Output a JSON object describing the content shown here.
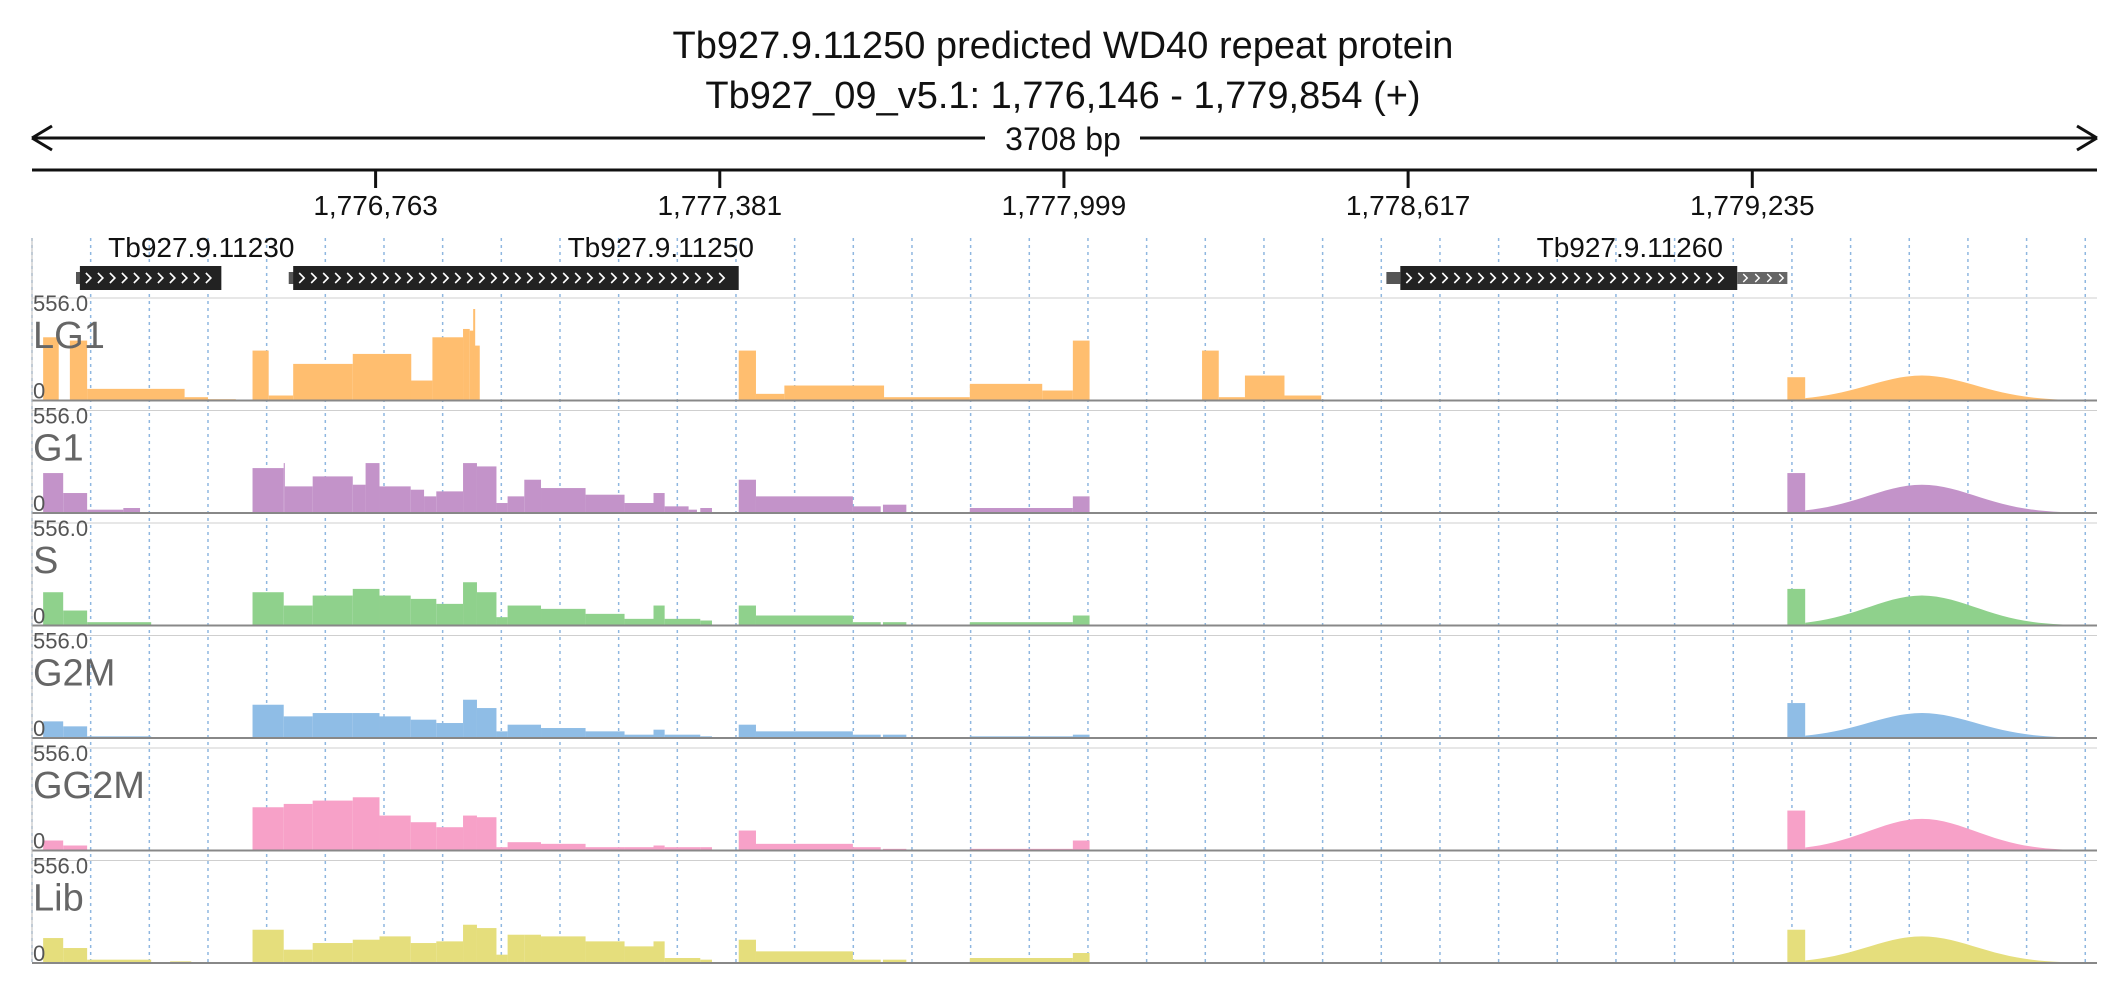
{
  "title": {
    "line1": "Tb927.9.11250  predicted WD40 repeat protein",
    "line2": "Tb927_09_v5.1: 1,776,146 - 1,779,854 (+)"
  },
  "span_label": "3708 bp",
  "chart_data": {
    "type": "area",
    "x_range": [
      1776146,
      1779854
    ],
    "x_ticks": [
      1776763,
      1777381,
      1777999,
      1778617,
      1779235
    ],
    "x_tick_labels": [
      "1,776,763",
      "1,777,381",
      "1,777,999",
      "1,778,617",
      "1,779,235"
    ],
    "ylim": [
      0,
      556.0
    ],
    "y_max_label": "556.0",
    "y_min_label": "0",
    "grid": "vertical dotted",
    "genes": [
      {
        "name": "Tb927.9.11230",
        "label_center": 1776450,
        "utr5": [
          1776225,
          1776232
        ],
        "cds": [
          1776232,
          1776486
        ]
      },
      {
        "name": "Tb927.9.11250",
        "label_center": 1777275,
        "utr5": [
          1776607,
          1776615
        ],
        "cds": [
          1776615,
          1777415
        ]
      },
      {
        "name": "Tb927.9.11260",
        "label_center": 1779015,
        "utr5": [
          1778578,
          1778603
        ],
        "cds": [
          1778603,
          1779208
        ],
        "utr3": [
          1779208,
          1779298
        ]
      }
    ],
    "series": [
      {
        "name": "LG1",
        "color": "#ffbe6f",
        "blocks": [
          [
            1776166,
            1776194,
            380
          ],
          [
            1776214,
            1776245,
            360
          ],
          [
            1776245,
            1776420,
            70
          ],
          [
            1776420,
            1776462,
            20
          ],
          [
            1776462,
            1776512,
            8
          ],
          [
            1776512,
            1776535,
            5
          ],
          [
            1776516,
            1776542,
            4
          ],
          [
            1776542,
            1776571,
            300
          ],
          [
            1776571,
            1776615,
            30
          ],
          [
            1776615,
            1776722,
            220
          ],
          [
            1776722,
            1776827,
            280
          ],
          [
            1776827,
            1776825,
            0
          ],
          [
            1776825,
            1776865,
            120
          ],
          [
            1776865,
            1776920,
            380
          ],
          [
            1776920,
            1776932,
            430
          ],
          [
            1776932,
            1776940,
            420
          ],
          [
            1776940,
            1776950,
            330
          ],
          [
            1777415,
            1777446,
            300
          ],
          [
            1777446,
            1777497,
            40
          ],
          [
            1777497,
            1777676,
            90
          ],
          [
            1777676,
            1777830,
            20
          ],
          [
            1777830,
            1777960,
            100
          ],
          [
            1777960,
            1778015,
            60
          ],
          [
            1778015,
            1778045,
            360
          ],
          [
            1778247,
            1778277,
            300
          ],
          [
            1778277,
            1778324,
            20
          ],
          [
            1778324,
            1778395,
            150
          ],
          [
            1778395,
            1778461,
            30
          ]
        ],
        "peaks": [
          [
            1776940,
            550
          ]
        ]
      },
      {
        "name": "G1",
        "color": "#c393c9",
        "blocks": [
          [
            1776166,
            1776202,
            240
          ],
          [
            1776202,
            1776245,
            120
          ],
          [
            1776245,
            1776310,
            20
          ],
          [
            1776310,
            1776340,
            30
          ],
          [
            1776394,
            1776432,
            5
          ],
          [
            1776542,
            1776598,
            270
          ],
          [
            1776598,
            1776600,
            300
          ],
          [
            1776600,
            1776650,
            160
          ],
          [
            1776650,
            1776722,
            220
          ],
          [
            1776722,
            1776745,
            170
          ],
          [
            1776745,
            1776770,
            300
          ],
          [
            1776770,
            1776826,
            160
          ],
          [
            1776826,
            1776850,
            140
          ],
          [
            1776850,
            1776872,
            100
          ],
          [
            1776872,
            1776920,
            130
          ],
          [
            1776920,
            1776945,
            300
          ],
          [
            1776945,
            1776980,
            280
          ],
          [
            1776980,
            1777000,
            60
          ],
          [
            1777000,
            1777030,
            100
          ],
          [
            1777030,
            1777060,
            200
          ],
          [
            1777060,
            1777140,
            150
          ],
          [
            1777140,
            1777210,
            110
          ],
          [
            1777210,
            1777262,
            60
          ],
          [
            1777262,
            1777282,
            120
          ],
          [
            1777282,
            1777325,
            40
          ],
          [
            1777325,
            1777340,
            20
          ],
          [
            1777346,
            1777367,
            30
          ],
          [
            1777415,
            1777446,
            200
          ],
          [
            1777446,
            1777620,
            100
          ],
          [
            1777620,
            1777670,
            40
          ],
          [
            1777674,
            1777716,
            50
          ],
          [
            1777830,
            1778015,
            30
          ],
          [
            1778015,
            1778045,
            100
          ]
        ]
      },
      {
        "name": "S",
        "color": "#8fd18c",
        "blocks": [
          [
            1776166,
            1776202,
            200
          ],
          [
            1776202,
            1776245,
            90
          ],
          [
            1776245,
            1776360,
            20
          ],
          [
            1776394,
            1776432,
            5
          ],
          [
            1776542,
            1776598,
            200
          ],
          [
            1776598,
            1776650,
            120
          ],
          [
            1776650,
            1776722,
            180
          ],
          [
            1776722,
            1776770,
            220
          ],
          [
            1776770,
            1776826,
            180
          ],
          [
            1776826,
            1776872,
            160
          ],
          [
            1776872,
            1776920,
            130
          ],
          [
            1776920,
            1776945,
            260
          ],
          [
            1776945,
            1776980,
            200
          ],
          [
            1776980,
            1777000,
            50
          ],
          [
            1777000,
            1777060,
            120
          ],
          [
            1777060,
            1777140,
            100
          ],
          [
            1777140,
            1777210,
            70
          ],
          [
            1777210,
            1777262,
            40
          ],
          [
            1777262,
            1777282,
            120
          ],
          [
            1777282,
            1777346,
            40
          ],
          [
            1777346,
            1777367,
            30
          ],
          [
            1777415,
            1777446,
            120
          ],
          [
            1777446,
            1777620,
            60
          ],
          [
            1777620,
            1777670,
            20
          ],
          [
            1777674,
            1777716,
            20
          ],
          [
            1777830,
            1778015,
            20
          ],
          [
            1778015,
            1778045,
            60
          ]
        ]
      },
      {
        "name": "G2M",
        "color": "#8fbde6",
        "blocks": [
          [
            1776166,
            1776202,
            100
          ],
          [
            1776202,
            1776245,
            70
          ],
          [
            1776245,
            1776360,
            10
          ],
          [
            1776394,
            1776432,
            5
          ],
          [
            1776542,
            1776598,
            200
          ],
          [
            1776598,
            1776650,
            130
          ],
          [
            1776650,
            1776722,
            150
          ],
          [
            1776722,
            1776770,
            150
          ],
          [
            1776770,
            1776826,
            130
          ],
          [
            1776826,
            1776872,
            110
          ],
          [
            1776872,
            1776920,
            90
          ],
          [
            1776920,
            1776945,
            230
          ],
          [
            1776945,
            1776980,
            180
          ],
          [
            1776980,
            1777000,
            40
          ],
          [
            1777000,
            1777060,
            80
          ],
          [
            1777060,
            1777140,
            60
          ],
          [
            1777140,
            1777210,
            40
          ],
          [
            1777210,
            1777262,
            20
          ],
          [
            1777262,
            1777282,
            50
          ],
          [
            1777282,
            1777346,
            20
          ],
          [
            1777346,
            1777367,
            10
          ],
          [
            1777415,
            1777446,
            80
          ],
          [
            1777446,
            1777620,
            40
          ],
          [
            1777620,
            1777670,
            20
          ],
          [
            1777674,
            1777716,
            20
          ],
          [
            1777830,
            1778015,
            10
          ],
          [
            1778015,
            1778045,
            20
          ]
        ]
      },
      {
        "name": "GG2M",
        "color": "#f7a1c8",
        "blocks": [
          [
            1776166,
            1776202,
            60
          ],
          [
            1776202,
            1776245,
            30
          ],
          [
            1776542,
            1776598,
            260
          ],
          [
            1776598,
            1776650,
            280
          ],
          [
            1776650,
            1776722,
            300
          ],
          [
            1776722,
            1776770,
            320
          ],
          [
            1776770,
            1776826,
            210
          ],
          [
            1776826,
            1776872,
            170
          ],
          [
            1776872,
            1776920,
            140
          ],
          [
            1776920,
            1776945,
            210
          ],
          [
            1776945,
            1776980,
            200
          ],
          [
            1776980,
            1777000,
            20
          ],
          [
            1777000,
            1777060,
            50
          ],
          [
            1777060,
            1777140,
            40
          ],
          [
            1777140,
            1777210,
            20
          ],
          [
            1777210,
            1777262,
            20
          ],
          [
            1777262,
            1777282,
            30
          ],
          [
            1777282,
            1777346,
            20
          ],
          [
            1777346,
            1777367,
            20
          ],
          [
            1777415,
            1777446,
            120
          ],
          [
            1777446,
            1777620,
            40
          ],
          [
            1777620,
            1777670,
            20
          ],
          [
            1777674,
            1777716,
            10
          ],
          [
            1777830,
            1778015,
            10
          ],
          [
            1778015,
            1778045,
            60
          ]
        ]
      },
      {
        "name": "Lib",
        "color": "#e5de7c",
        "blocks": [
          [
            1776166,
            1776202,
            150
          ],
          [
            1776202,
            1776245,
            90
          ],
          [
            1776245,
            1776360,
            20
          ],
          [
            1776394,
            1776432,
            10
          ],
          [
            1776542,
            1776598,
            200
          ],
          [
            1776598,
            1776650,
            80
          ],
          [
            1776650,
            1776722,
            120
          ],
          [
            1776722,
            1776770,
            140
          ],
          [
            1776770,
            1776826,
            160
          ],
          [
            1776826,
            1776872,
            120
          ],
          [
            1776872,
            1776920,
            130
          ],
          [
            1776920,
            1776945,
            230
          ],
          [
            1776945,
            1776980,
            210
          ],
          [
            1776980,
            1777000,
            50
          ],
          [
            1777000,
            1777030,
            170
          ],
          [
            1777030,
            1777060,
            170
          ],
          [
            1777060,
            1777140,
            160
          ],
          [
            1777140,
            1777210,
            130
          ],
          [
            1777210,
            1777262,
            100
          ],
          [
            1777262,
            1777282,
            130
          ],
          [
            1777282,
            1777346,
            30
          ],
          [
            1777346,
            1777367,
            20
          ],
          [
            1777415,
            1777446,
            140
          ],
          [
            1777446,
            1777620,
            70
          ],
          [
            1777620,
            1777670,
            20
          ],
          [
            1777674,
            1777716,
            20
          ],
          [
            1777830,
            1778015,
            30
          ],
          [
            1778015,
            1778045,
            60
          ]
        ]
      }
    ],
    "tail_bumps": [
      {
        "track": "LG1",
        "step": [
          1779298,
          1779330,
          140
        ],
        "hump": [
          1779330,
          1779854,
          150
        ]
      },
      {
        "track": "G1",
        "step": [
          1779298,
          1779330,
          240
        ],
        "hump": [
          1779330,
          1779854,
          170
        ]
      },
      {
        "track": "S",
        "step": [
          1779298,
          1779330,
          220
        ],
        "hump": [
          1779330,
          1779854,
          180
        ]
      },
      {
        "track": "G2M",
        "step": [
          1779298,
          1779330,
          210
        ],
        "hump": [
          1779330,
          1779854,
          150
        ]
      },
      {
        "track": "GG2M",
        "step": [
          1779298,
          1779330,
          240
        ],
        "hump": [
          1779330,
          1779854,
          190
        ]
      },
      {
        "track": "Lib",
        "step": [
          1779298,
          1779330,
          200
        ],
        "hump": [
          1779330,
          1779854,
          160
        ]
      }
    ]
  }
}
